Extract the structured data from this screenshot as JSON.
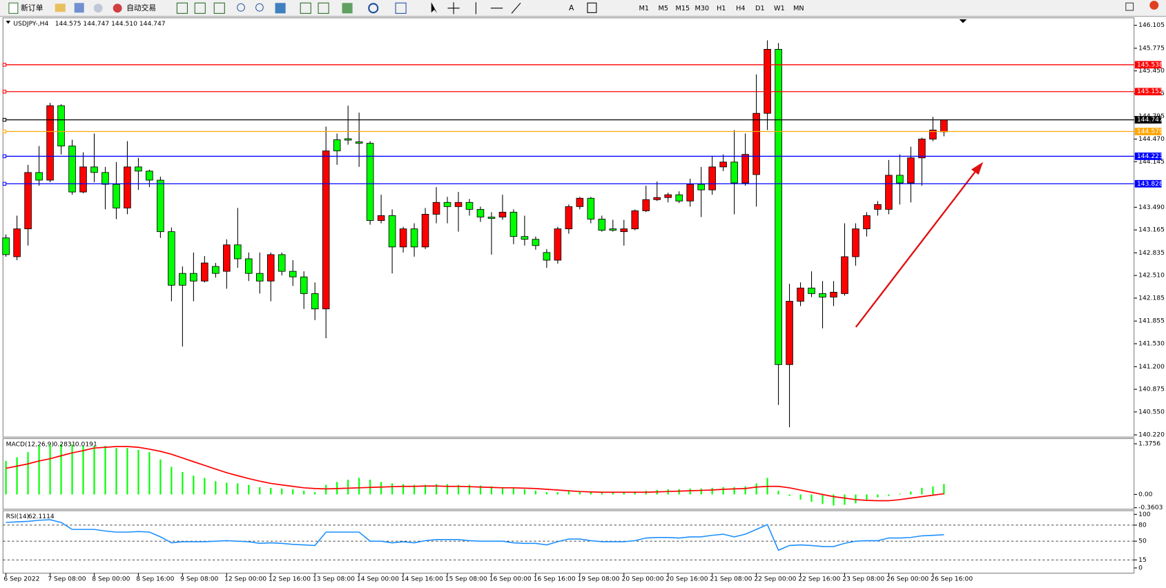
{
  "toolbar": {
    "buttons": [
      "新订单",
      "自动交易"
    ],
    "timeframes": [
      "M1",
      "M5",
      "M15",
      "M30",
      "H1",
      "H4",
      "D1",
      "W1",
      "MN"
    ]
  },
  "chart_data": [
    {
      "type": "candlestick",
      "title": "USDJPY-,H4",
      "ohlc_text": "144.575 144.747 144.510 144.747",
      "categories": [
        "6 Sep 2022",
        null,
        null,
        null,
        "7 Sep 08:00",
        null,
        null,
        null,
        "8 Sep 00:00",
        null,
        null,
        null,
        "8 Sep 16:00",
        null,
        null,
        null,
        "9 Sep 08:00",
        null,
        null,
        null,
        "12 Sep 00:00",
        null,
        null,
        null,
        "12 Sep 16:00",
        null,
        null,
        null,
        "13 Sep 08:00",
        null,
        null,
        null,
        "14 Sep 00:00",
        null,
        null,
        null,
        "14 Sep 16:00",
        null,
        null,
        null,
        "15 Sep 08:00",
        null,
        null,
        null,
        "16 Sep 00:00",
        null,
        null,
        null,
        "16 Sep 16:00",
        null,
        null,
        null,
        "19 Sep 08:00",
        null,
        null,
        null,
        "20 Sep 00:00",
        null,
        null,
        null,
        "20 Sep 16:00",
        null,
        null,
        null,
        "21 Sep 08:00",
        null,
        null,
        null,
        "22 Sep 00:00",
        null,
        null,
        null,
        "22 Sep 16:00",
        null,
        null,
        null,
        "23 Sep 08:00",
        null,
        null,
        null,
        "26 Sep 00:00",
        null,
        null,
        null,
        "26 Sep 16:00",
        null
      ],
      "open": [
        143.05,
        142.78,
        143.18,
        143.99,
        143.88,
        144.95,
        144.37,
        143.71,
        144.07,
        143.99,
        143.82,
        143.48,
        144.07,
        144.01,
        143.88,
        143.14,
        142.54,
        142.54,
        142.43,
        142.64,
        142.57,
        142.95,
        142.75,
        142.54,
        142.43,
        142.81,
        142.57,
        142.49,
        142.25,
        142.03,
        144.46,
        144.475,
        144.43,
        144.41,
        143.3,
        143.37,
        142.92,
        143.18,
        142.92,
        143.39,
        143.56,
        143.5,
        143.56,
        143.46,
        143.35,
        143.35,
        143.42,
        143.07,
        143.03,
        142.84,
        142.73,
        143.18,
        143.5,
        143.62,
        143.32,
        143.18,
        143.14,
        143.18,
        143.44,
        143.6,
        143.63,
        143.67,
        143.58,
        143.82,
        143.74,
        144.07,
        144.14,
        143.84,
        143.96,
        144.84,
        145.76,
        141.23,
        142.14,
        142.33,
        142.25,
        142.2,
        142.25,
        142.78,
        143.18,
        143.46,
        143.46,
        143.95,
        143.84,
        144.2,
        144.47,
        144.575
      ],
      "high": [
        143.1,
        143.37,
        144.1,
        144.37,
        144.99,
        144.97,
        144.46,
        144.28,
        144.55,
        144.07,
        144.14,
        144.44,
        144.2,
        144.03,
        143.93,
        143.2,
        142.64,
        142.84,
        142.79,
        142.69,
        143.03,
        143.48,
        142.84,
        142.84,
        142.84,
        142.84,
        142.73,
        142.57,
        142.41,
        144.65,
        144.55,
        144.95,
        144.85,
        144.44,
        143.67,
        143.46,
        143.21,
        143.26,
        143.48,
        143.78,
        143.64,
        143.71,
        143.61,
        143.5,
        143.42,
        143.67,
        143.46,
        143.37,
        143.07,
        142.89,
        143.21,
        143.53,
        143.64,
        143.64,
        143.37,
        143.31,
        143.31,
        143.46,
        143.8,
        143.86,
        143.7,
        143.72,
        143.9,
        144.07,
        144.23,
        144.25,
        144.6,
        144.55,
        145.4,
        145.89,
        145.85,
        142.39,
        142.41,
        142.57,
        142.43,
        142.43,
        143.26,
        143.26,
        143.42,
        143.58,
        144.17,
        144.25,
        144.36,
        144.49,
        144.79,
        144.747
      ],
      "low": [
        142.78,
        142.73,
        142.94,
        143.8,
        143.85,
        144.25,
        143.67,
        143.69,
        143.85,
        143.46,
        143.32,
        143.39,
        143.74,
        143.78,
        143.05,
        142.14,
        141.49,
        142.14,
        142.41,
        142.48,
        142.32,
        142.62,
        142.43,
        142.25,
        142.14,
        142.51,
        142.36,
        142.03,
        141.87,
        141.61,
        144.1,
        144.39,
        144.07,
        143.24,
        143.26,
        142.54,
        142.84,
        142.78,
        142.89,
        143.26,
        143.26,
        143.14,
        143.37,
        143.28,
        142.81,
        143.31,
        142.96,
        142.94,
        142.88,
        142.62,
        142.68,
        143.11,
        143.46,
        143.26,
        143.14,
        143.14,
        142.94,
        143.16,
        143.42,
        143.58,
        143.56,
        143.55,
        143.5,
        143.35,
        143.67,
        144.01,
        143.39,
        143.8,
        143.5,
        144.6,
        140.65,
        140.33,
        142.07,
        142.2,
        141.75,
        142.07,
        142.22,
        142.65,
        143.07,
        143.37,
        143.39,
        143.53,
        143.56,
        143.8,
        144.44,
        144.51
      ],
      "close": [
        142.81,
        143.18,
        143.99,
        143.88,
        144.95,
        144.37,
        143.71,
        144.07,
        143.99,
        143.82,
        143.48,
        144.07,
        144.01,
        143.88,
        143.14,
        142.37,
        142.37,
        142.43,
        142.69,
        142.54,
        142.95,
        142.75,
        142.54,
        142.43,
        142.81,
        142.57,
        142.49,
        142.25,
        142.03,
        144.3,
        144.3,
        144.455,
        144.41,
        143.3,
        143.37,
        142.92,
        143.18,
        142.92,
        143.39,
        143.56,
        143.5,
        143.56,
        143.46,
        143.35,
        143.33,
        143.42,
        143.07,
        143.03,
        142.94,
        142.73,
        143.18,
        143.5,
        143.62,
        143.32,
        143.16,
        143.16,
        143.18,
        143.44,
        143.6,
        143.63,
        143.67,
        143.58,
        143.82,
        143.74,
        144.07,
        144.14,
        143.84,
        144.25,
        144.84,
        145.76,
        141.23,
        142.14,
        142.33,
        142.25,
        142.2,
        142.27,
        142.78,
        143.18,
        143.37,
        143.53,
        143.95,
        143.84,
        144.2,
        144.47,
        144.6,
        144.747
      ],
      "up_color": "#ff0000",
      "down_color": "#00ff00",
      "ylim": [
        140.188,
        146.212
      ],
      "yticks": [
        146.105,
        145.775,
        {
          "value": 145.45,
          "label": "145.450"
        },
        145.125,
        144.795,
        {
          "value": 144.47,
          "label": "144.470"
        },
        144.145,
        {
          "value": 143.49,
          "label": "143.490"
        },
        143.165,
        142.835,
        {
          "value": 142.51,
          "label": "142.510"
        },
        142.185,
        141.855,
        {
          "value": 141.53,
          "label": "141.530"
        },
        {
          "value": 141.2,
          "label": "141.200"
        },
        140.875,
        {
          "value": 140.55,
          "label": "140.550"
        },
        {
          "value": 140.22,
          "label": "140.220"
        }
      ],
      "hlines": [
        {
          "value": 145.538,
          "color": "#ff0000"
        },
        {
          "value": 145.152,
          "color": "#ff0000"
        },
        {
          "value": 144.747,
          "color": "#000000"
        },
        {
          "value": 144.579,
          "color": "#ffa500"
        },
        {
          "value": 144.223,
          "color": "#0000ff"
        },
        {
          "value": 143.828,
          "color": "#0000ff"
        }
      ]
    },
    {
      "type": "macd",
      "title": "MACD(12,26,9)",
      "series": [
        {
          "style": "histogram",
          "color": "#00ff00",
          "values": [
            0.91,
            1.01,
            1.15,
            1.32,
            1.36,
            1.37,
            1.36,
            1.32,
            1.32,
            1.32,
            1.26,
            1.26,
            1.21,
            1.15,
            0.95,
            0.75,
            0.61,
            0.51,
            0.45,
            0.36,
            0.32,
            0.3,
            0.26,
            0.2,
            0.18,
            0.16,
            0.14,
            0.1,
            0.06,
            0.26,
            0.34,
            0.4,
            0.45,
            0.4,
            0.34,
            0.3,
            0.28,
            0.26,
            0.26,
            0.28,
            0.28,
            0.26,
            0.26,
            0.24,
            0.22,
            0.2,
            0.18,
            0.14,
            0.1,
            0.06,
            0.06,
            0.08,
            0.08,
            0.08,
            0.08,
            0.06,
            0.06,
            0.08,
            0.1,
            0.12,
            0.14,
            0.14,
            0.16,
            0.16,
            0.18,
            0.2,
            0.2,
            0.22,
            0.3,
            0.45,
            0.1,
            -0.04,
            -0.14,
            -0.2,
            -0.26,
            -0.3,
            -0.28,
            -0.24,
            -0.14,
            -0.08,
            -0.04,
            0.02,
            0.08,
            0.18,
            0.22,
            0.2831
          ]
        },
        {
          "style": "line",
          "color": "#ff0000",
          "values": [
            0.71,
            0.77,
            0.83,
            0.91,
            0.97,
            1.05,
            1.13,
            1.19,
            1.26,
            1.28,
            1.3,
            1.3,
            1.28,
            1.23,
            1.17,
            1.09,
            0.99,
            0.89,
            0.79,
            0.69,
            0.59,
            0.51,
            0.43,
            0.36,
            0.3,
            0.26,
            0.22,
            0.18,
            0.16,
            0.15,
            0.16,
            0.17,
            0.18,
            0.19,
            0.2,
            0.21,
            0.22,
            0.22,
            0.23,
            0.23,
            0.22,
            0.22,
            0.21,
            0.2,
            0.19,
            0.18,
            0.18,
            0.17,
            0.16,
            0.14,
            0.12,
            0.1,
            0.08,
            0.07,
            0.06,
            0.06,
            0.06,
            0.06,
            0.06,
            0.07,
            0.08,
            0.09,
            0.1,
            0.11,
            0.12,
            0.14,
            0.15,
            0.16,
            0.2,
            0.22,
            0.22,
            0.18,
            0.12,
            0.06,
            0.0,
            -0.06,
            -0.1,
            -0.14,
            -0.16,
            -0.17,
            -0.17,
            -0.14,
            -0.1,
            -0.06,
            -0.02,
            0.0191
          ]
        }
      ],
      "ylim": [
        -0.3603,
        1.3756
      ],
      "yticks": [
        1.3756,
        {
          "value": 0,
          "label": "0.00"
        },
        -0.3603
      ]
    },
    {
      "type": "line",
      "title": "RSI(14)",
      "series": [
        {
          "color": "#1e90ff",
          "values": [
            85,
            86,
            87,
            89,
            90,
            85,
            72,
            72,
            72,
            69,
            67,
            67,
            68,
            67,
            58,
            47,
            49,
            49,
            49,
            50,
            51,
            50,
            49,
            46,
            47,
            46,
            44,
            43,
            42,
            67,
            67,
            67,
            67,
            50,
            50,
            47,
            49,
            47,
            51,
            53,
            53,
            53,
            51,
            50,
            50,
            50,
            47,
            46,
            46,
            43,
            49,
            54,
            54,
            51,
            49,
            49,
            49,
            51,
            56,
            57,
            57,
            56,
            58,
            58,
            61,
            63,
            58,
            63,
            72,
            81,
            33,
            42,
            43,
            42,
            40,
            40,
            46,
            50,
            51,
            51,
            56,
            56,
            57,
            60,
            61,
            62.1114
          ]
        }
      ],
      "ylim": [
        0,
        100
      ],
      "yticks": [
        100,
        80,
        50,
        15,
        0
      ],
      "levels": [
        80,
        50,
        15
      ]
    }
  ]
}
